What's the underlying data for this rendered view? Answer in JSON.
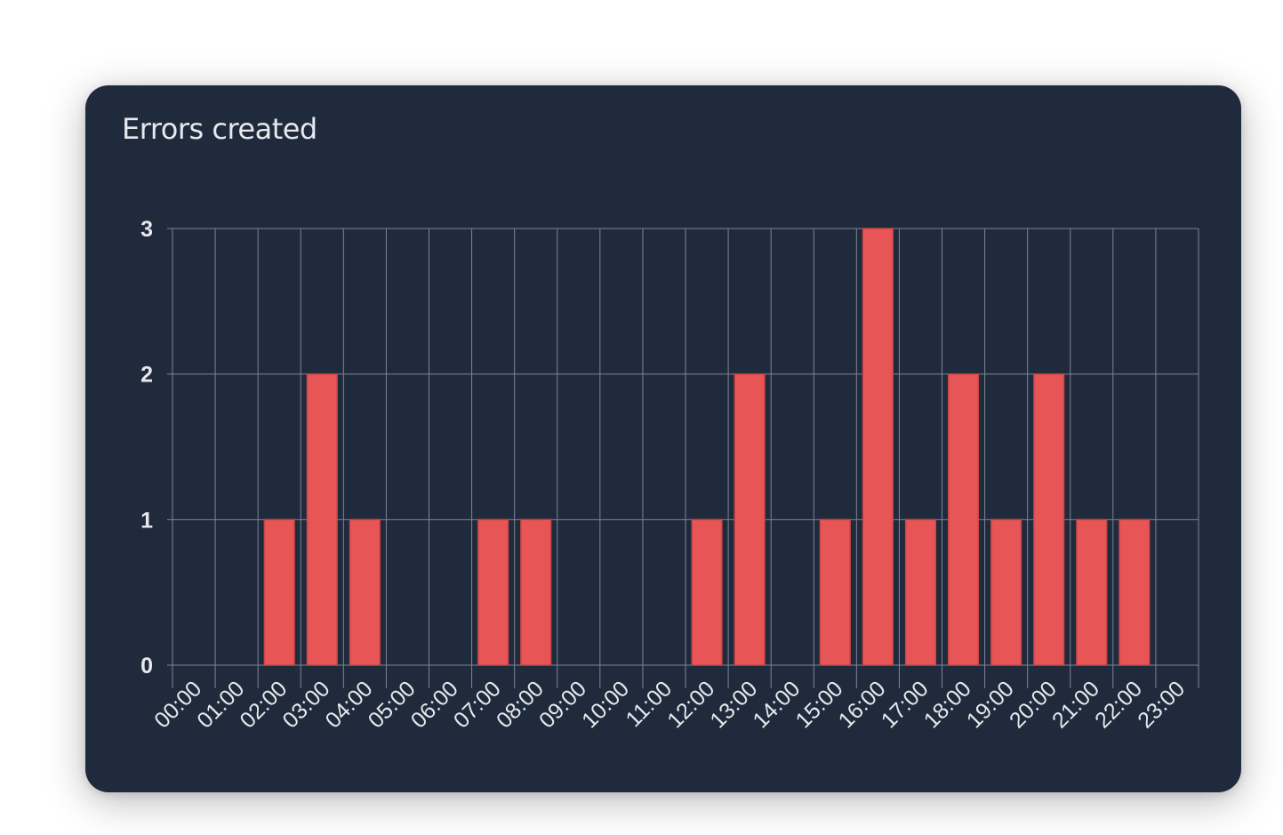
{
  "card": {
    "title": "Errors created"
  },
  "colors": {
    "card_background": "#1f2a3c",
    "bar_fill": "#e85556",
    "bar_stroke": "#c94646",
    "grid": "#7d8594",
    "tick_text": "#e6e8ec"
  },
  "chart_data": {
    "type": "bar",
    "title": "Errors created",
    "xlabel": "",
    "ylabel": "",
    "categories": [
      "00:00",
      "01:00",
      "02:00",
      "03:00",
      "04:00",
      "05:00",
      "06:00",
      "07:00",
      "08:00",
      "09:00",
      "10:00",
      "11:00",
      "12:00",
      "13:00",
      "14:00",
      "15:00",
      "16:00",
      "17:00",
      "18:00",
      "19:00",
      "20:00",
      "21:00",
      "22:00",
      "23:00"
    ],
    "values": [
      0,
      0,
      1,
      2,
      1,
      0,
      0,
      1,
      1,
      0,
      0,
      0,
      1,
      2,
      0,
      1,
      3,
      1,
      2,
      1,
      2,
      1,
      1,
      0
    ],
    "ylim": [
      0,
      3
    ],
    "yticks": [
      0,
      1,
      2,
      3
    ],
    "grid": true,
    "legend": "none"
  }
}
